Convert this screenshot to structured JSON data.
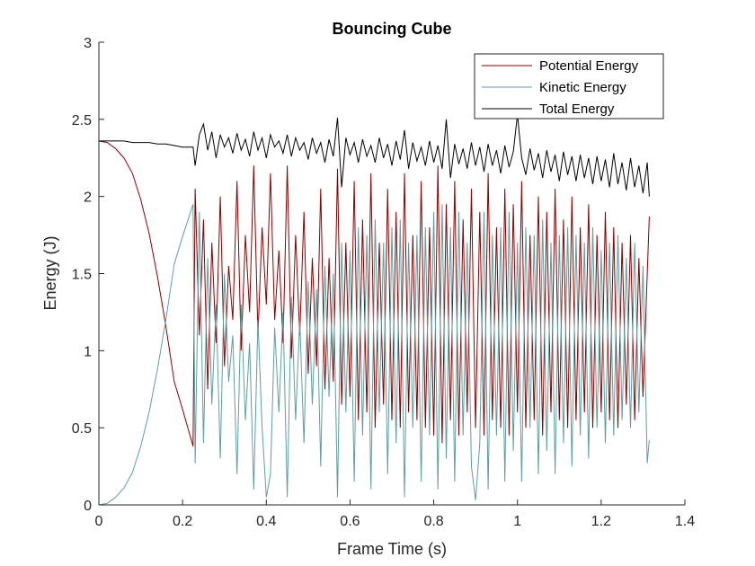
{
  "chart_data": {
    "type": "line",
    "title": "Bouncing Cube",
    "xlabel": "Frame Time (s)",
    "ylabel": "Energy (J)",
    "xlim": [
      0,
      1.4
    ],
    "ylim": [
      0,
      3
    ],
    "xticks": [
      0,
      0.2,
      0.4,
      0.6,
      0.8,
      1,
      1.2,
      1.4
    ],
    "xtick_labels": [
      "0",
      "0.2",
      "0.4",
      "0.6",
      "0.8",
      "1",
      "1.2",
      "1.4"
    ],
    "yticks": [
      0,
      0.5,
      1,
      1.5,
      2,
      2.5,
      3
    ],
    "ytick_labels": [
      "0",
      "0.5",
      "1",
      "1.5",
      "2",
      "2.5",
      "3"
    ],
    "grid": false,
    "legend_location": "top-right",
    "series": [
      {
        "name": "Potential Energy",
        "color": "#8b0000",
        "x": [
          0,
          0.02,
          0.04,
          0.06,
          0.08,
          0.1,
          0.12,
          0.14,
          0.16,
          0.18,
          0.2,
          0.225,
          0.23,
          0.24,
          0.25,
          0.26,
          0.27,
          0.28,
          0.29,
          0.3,
          0.31,
          0.32,
          0.33,
          0.34,
          0.35,
          0.36,
          0.37,
          0.38,
          0.39,
          0.4,
          0.41,
          0.42,
          0.43,
          0.44,
          0.45,
          0.46,
          0.47,
          0.48,
          0.49,
          0.5,
          0.51,
          0.52,
          0.53,
          0.54,
          0.55,
          0.56,
          0.57,
          0.58,
          0.59,
          0.6,
          0.61,
          0.62,
          0.63,
          0.64,
          0.65,
          0.66,
          0.67,
          0.68,
          0.69,
          0.7,
          0.71,
          0.72,
          0.73,
          0.74,
          0.75,
          0.76,
          0.77,
          0.78,
          0.79,
          0.8,
          0.81,
          0.82,
          0.83,
          0.84,
          0.85,
          0.86,
          0.87,
          0.88,
          0.89,
          0.9,
          0.91,
          0.92,
          0.93,
          0.94,
          0.95,
          0.96,
          0.97,
          0.98,
          0.99,
          1.0,
          1.01,
          1.02,
          1.03,
          1.04,
          1.05,
          1.06,
          1.07,
          1.08,
          1.09,
          1.1,
          1.11,
          1.12,
          1.13,
          1.14,
          1.15,
          1.16,
          1.17,
          1.18,
          1.19,
          1.2,
          1.21,
          1.22,
          1.23,
          1.24,
          1.25,
          1.26,
          1.27,
          1.28,
          1.29,
          1.3,
          1.31,
          1.315
        ],
        "y": [
          2.36,
          2.35,
          2.31,
          2.25,
          2.15,
          1.98,
          1.76,
          1.48,
          1.16,
          0.8,
          0.62,
          0.38,
          2.05,
          1.1,
          1.85,
          0.75,
          1.7,
          1.05,
          2.0,
          0.9,
          1.55,
          1.2,
          2.1,
          1.0,
          1.75,
          1.25,
          2.2,
          1.1,
          1.8,
          1.3,
          2.15,
          1.2,
          1.65,
          1.05,
          2.2,
          0.95,
          1.75,
          1.1,
          1.9,
          0.85,
          1.6,
          0.9,
          2.05,
          0.75,
          1.6,
          0.8,
          2.18,
          0.65,
          1.7,
          0.7,
          2.1,
          0.55,
          1.85,
          0.6,
          2.15,
          0.5,
          1.7,
          0.65,
          2.05,
          0.55,
          1.9,
          0.5,
          2.15,
          0.6,
          1.75,
          0.55,
          2.1,
          0.5,
          1.8,
          0.45,
          2.2,
          0.4,
          1.95,
          0.55,
          2.1,
          0.45,
          1.85,
          0.6,
          2.05,
          0.5,
          1.9,
          0.45,
          2.15,
          0.55,
          1.8,
          0.5,
          2.05,
          0.45,
          1.95,
          0.6,
          2.1,
          0.5,
          1.75,
          0.55,
          2.0,
          0.45,
          1.9,
          0.6,
          2.05,
          0.55,
          1.85,
          0.5,
          2.0,
          0.55,
          1.8,
          0.6,
          1.95,
          0.5,
          1.75,
          0.6,
          1.9,
          0.55,
          1.8,
          0.5,
          1.7,
          0.65,
          1.75,
          0.55,
          1.6,
          0.7,
          1.5,
          1.87
        ]
      },
      {
        "name": "Kinetic Energy",
        "color": "#5f9ea0",
        "x": [
          0,
          0.02,
          0.04,
          0.06,
          0.08,
          0.1,
          0.12,
          0.14,
          0.16,
          0.18,
          0.2,
          0.225,
          0.23,
          0.24,
          0.25,
          0.26,
          0.27,
          0.28,
          0.29,
          0.3,
          0.31,
          0.32,
          0.33,
          0.34,
          0.35,
          0.36,
          0.37,
          0.38,
          0.39,
          0.4,
          0.41,
          0.42,
          0.43,
          0.44,
          0.45,
          0.46,
          0.47,
          0.48,
          0.49,
          0.5,
          0.51,
          0.52,
          0.53,
          0.54,
          0.55,
          0.56,
          0.57,
          0.58,
          0.59,
          0.6,
          0.61,
          0.62,
          0.63,
          0.64,
          0.65,
          0.66,
          0.67,
          0.68,
          0.69,
          0.7,
          0.71,
          0.72,
          0.73,
          0.74,
          0.75,
          0.76,
          0.77,
          0.78,
          0.79,
          0.8,
          0.81,
          0.82,
          0.83,
          0.84,
          0.85,
          0.86,
          0.87,
          0.88,
          0.89,
          0.9,
          0.91,
          0.92,
          0.93,
          0.94,
          0.95,
          0.96,
          0.97,
          0.98,
          0.99,
          1.0,
          1.01,
          1.02,
          1.03,
          1.04,
          1.05,
          1.06,
          1.07,
          1.08,
          1.09,
          1.1,
          1.11,
          1.12,
          1.13,
          1.14,
          1.15,
          1.16,
          1.17,
          1.18,
          1.19,
          1.2,
          1.21,
          1.22,
          1.23,
          1.24,
          1.25,
          1.26,
          1.27,
          1.28,
          1.29,
          1.3,
          1.31,
          1.315
        ],
        "y": [
          0.0,
          0.01,
          0.05,
          0.11,
          0.21,
          0.38,
          0.6,
          0.88,
          1.2,
          1.56,
          1.74,
          1.95,
          0.27,
          1.9,
          0.4,
          1.6,
          0.65,
          1.3,
          0.3,
          1.5,
          0.8,
          1.1,
          0.2,
          1.3,
          0.55,
          1.05,
          0.1,
          1.2,
          0.5,
          0.05,
          0.2,
          1.15,
          0.6,
          1.25,
          0.05,
          1.35,
          0.55,
          1.2,
          0.4,
          1.45,
          0.65,
          1.4,
          0.25,
          1.55,
          0.7,
          1.5,
          0.05,
          1.7,
          0.6,
          1.65,
          0.15,
          1.8,
          0.45,
          1.75,
          0.1,
          1.85,
          0.6,
          1.7,
          0.2,
          1.8,
          0.4,
          1.85,
          0.05,
          1.7,
          0.5,
          1.75,
          0.15,
          1.8,
          0.45,
          1.9,
          0.1,
          1.95,
          0.3,
          1.8,
          0.15,
          1.9,
          0.45,
          1.7,
          0.25,
          0.03,
          0.4,
          1.9,
          0.1,
          1.75,
          0.45,
          1.8,
          0.15,
          1.9,
          0.35,
          1.7,
          0.15,
          1.8,
          0.5,
          1.75,
          0.2,
          1.85,
          0.35,
          1.7,
          0.2,
          1.75,
          0.4,
          1.8,
          0.25,
          1.75,
          0.45,
          1.7,
          0.3,
          1.8,
          0.5,
          1.65,
          0.4,
          1.7,
          0.45,
          1.75,
          0.55,
          1.6,
          0.5,
          1.7,
          0.6,
          1.55,
          0.27,
          0.42
        ]
      },
      {
        "name": "Total Energy",
        "color": "#000000",
        "x": [
          0,
          0.02,
          0.04,
          0.06,
          0.08,
          0.1,
          0.12,
          0.14,
          0.16,
          0.18,
          0.2,
          0.225,
          0.23,
          0.24,
          0.25,
          0.26,
          0.27,
          0.28,
          0.29,
          0.3,
          0.31,
          0.32,
          0.33,
          0.34,
          0.35,
          0.36,
          0.37,
          0.38,
          0.39,
          0.4,
          0.41,
          0.42,
          0.43,
          0.44,
          0.45,
          0.46,
          0.47,
          0.48,
          0.49,
          0.5,
          0.51,
          0.52,
          0.53,
          0.54,
          0.55,
          0.56,
          0.57,
          0.58,
          0.59,
          0.6,
          0.61,
          0.62,
          0.63,
          0.64,
          0.65,
          0.66,
          0.67,
          0.68,
          0.69,
          0.7,
          0.71,
          0.72,
          0.73,
          0.74,
          0.75,
          0.76,
          0.77,
          0.78,
          0.79,
          0.8,
          0.81,
          0.82,
          0.83,
          0.84,
          0.85,
          0.86,
          0.87,
          0.88,
          0.89,
          0.9,
          0.91,
          0.92,
          0.93,
          0.94,
          0.95,
          0.96,
          0.97,
          0.98,
          0.99,
          1.0,
          1.01,
          1.02,
          1.03,
          1.04,
          1.05,
          1.06,
          1.07,
          1.08,
          1.09,
          1.1,
          1.11,
          1.12,
          1.13,
          1.14,
          1.15,
          1.16,
          1.17,
          1.18,
          1.19,
          1.2,
          1.21,
          1.22,
          1.23,
          1.24,
          1.25,
          1.26,
          1.27,
          1.28,
          1.29,
          1.3,
          1.31,
          1.315
        ],
        "y": [
          2.36,
          2.36,
          2.36,
          2.36,
          2.35,
          2.35,
          2.35,
          2.34,
          2.34,
          2.33,
          2.32,
          2.32,
          2.2,
          2.4,
          2.47,
          2.3,
          2.42,
          2.25,
          2.4,
          2.32,
          2.38,
          2.28,
          2.41,
          2.3,
          2.37,
          2.26,
          2.42,
          2.3,
          2.38,
          2.25,
          2.4,
          2.32,
          2.36,
          2.28,
          2.4,
          2.26,
          2.38,
          2.3,
          2.35,
          2.24,
          2.38,
          2.28,
          2.35,
          2.22,
          2.37,
          2.26,
          2.51,
          2.06,
          2.38,
          2.27,
          2.35,
          2.22,
          2.37,
          2.26,
          2.33,
          2.22,
          2.38,
          2.25,
          2.34,
          2.2,
          2.36,
          2.24,
          2.43,
          2.18,
          2.35,
          2.23,
          2.32,
          2.2,
          2.36,
          2.22,
          2.33,
          2.18,
          2.5,
          2.12,
          2.34,
          2.21,
          2.31,
          2.18,
          2.35,
          2.2,
          2.32,
          2.16,
          2.34,
          2.2,
          2.3,
          2.15,
          2.33,
          2.19,
          2.29,
          2.53,
          2.25,
          2.14,
          2.31,
          2.17,
          2.28,
          2.12,
          2.3,
          2.16,
          2.27,
          2.1,
          2.29,
          2.14,
          2.26,
          2.1,
          2.27,
          2.12,
          2.25,
          2.08,
          2.26,
          2.1,
          2.24,
          2.06,
          2.28,
          2.08,
          2.22,
          2.04,
          2.25,
          2.06,
          2.2,
          2.02,
          2.22,
          2.0
        ]
      }
    ]
  }
}
